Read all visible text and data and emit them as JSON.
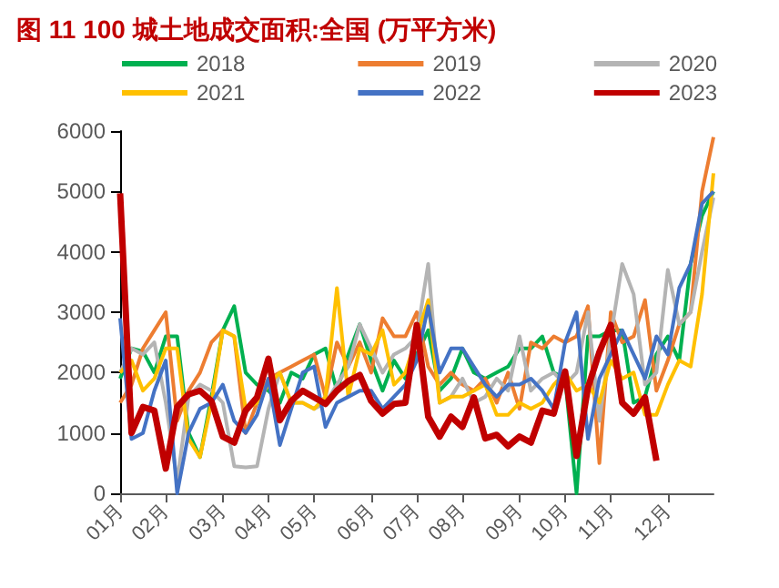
{
  "chart_data": {
    "type": "line",
    "title": "图 11 100 城土地成交面积:全国 (万平方米)",
    "categories": [
      "01月",
      null,
      null,
      null,
      "02月",
      null,
      null,
      null,
      null,
      "03月",
      null,
      null,
      null,
      "04月",
      null,
      null,
      null,
      "05月",
      null,
      null,
      null,
      null,
      "06月",
      null,
      null,
      null,
      "07月",
      null,
      null,
      null,
      "08月",
      null,
      null,
      null,
      null,
      "09月",
      null,
      null,
      null,
      "10月",
      null,
      null,
      null,
      "11月",
      null,
      null,
      null,
      null,
      "12月",
      null,
      null,
      null,
      null
    ],
    "ylim": [
      0,
      6000
    ],
    "yticks": [
      0,
      1000,
      2000,
      3000,
      4000,
      5000,
      6000
    ],
    "legend": "top",
    "grid": false,
    "marker": "none",
    "line_style": "solid",
    "series": [
      {
        "name": "2018",
        "color": "#00b050",
        "values": [
          1900,
          2400,
          2350,
          2000,
          2600,
          2600,
          1000,
          600,
          1600,
          2700,
          3100,
          2000,
          1800,
          1700,
          1500,
          2000,
          1900,
          2300,
          2400,
          1700,
          2300,
          2800,
          2200,
          1700,
          2200,
          1900,
          2300,
          2700,
          1700,
          1900,
          2400,
          2000,
          1900,
          2000,
          2100,
          2400,
          2400,
          2600,
          2000,
          1900,
          0,
          2600,
          2600,
          2700,
          2700,
          1500,
          1600,
          2300,
          2600,
          2200,
          3800,
          4600,
          5000
        ]
      },
      {
        "name": "2019",
        "color": "#ed7d31",
        "values": [
          1500,
          1800,
          2400,
          2700,
          3000,
          1200,
          1700,
          2000,
          2500,
          2700,
          2600,
          1000,
          1500,
          1900,
          2000,
          2100,
          2200,
          2300,
          1600,
          2500,
          2100,
          2500,
          2000,
          2900,
          2600,
          2600,
          3000,
          2100,
          1800,
          2000,
          1800,
          1700,
          1900,
          1500,
          2000,
          1400,
          2500,
          2400,
          2600,
          2500,
          2600,
          3100,
          500,
          3000,
          2500,
          2600,
          3200,
          1700,
          2200,
          2800,
          3000,
          5000,
          5900
        ]
      },
      {
        "name": "2020",
        "color": "#b4b4b4",
        "values": [
          2000,
          2400,
          2300,
          2500,
          1500,
          200,
          1600,
          1800,
          1700,
          1500,
          450,
          430,
          450,
          1400,
          2000,
          1500,
          1500,
          1400,
          1500,
          1800,
          2100,
          2800,
          2400,
          2000,
          2300,
          2400,
          2600,
          3800,
          1500,
          1600,
          1900,
          1500,
          1600,
          1900,
          1700,
          2600,
          1700,
          1900,
          2000,
          1800,
          2000,
          3000,
          1200,
          2600,
          3800,
          3300,
          1800,
          2000,
          3700,
          2800,
          3000,
          4000,
          4900
        ]
      },
      {
        "name": "2021",
        "color": "#ffc000",
        "values": [
          2000,
          2200,
          1700,
          1900,
          2400,
          2400,
          900,
          600,
          1500,
          2700,
          2600,
          1400,
          1500,
          1800,
          2000,
          1500,
          1500,
          1400,
          1600,
          3400,
          1600,
          2400,
          2300,
          2700,
          1800,
          2000,
          2600,
          3200,
          1500,
          1600,
          1600,
          1700,
          1800,
          1300,
          1300,
          1500,
          1400,
          1500,
          1800,
          2000,
          1700,
          1800,
          1500,
          2200,
          1900,
          2000,
          1300,
          1300,
          1800,
          2200,
          2100,
          3300,
          5300
        ]
      },
      {
        "name": "2022",
        "color": "#4472c4",
        "values": [
          2900,
          900,
          1000,
          1700,
          2200,
          0,
          1000,
          1400,
          1500,
          1800,
          1200,
          1000,
          1300,
          1900,
          800,
          1400,
          2000,
          2100,
          1100,
          1500,
          1600,
          1700,
          1700,
          1400,
          1600,
          1800,
          2200,
          3100,
          2000,
          2400,
          2400,
          2100,
          1800,
          1600,
          1800,
          1800,
          1900,
          1700,
          1400,
          2500,
          3000,
          900,
          1900,
          2300,
          2700,
          2300,
          1900,
          2600,
          2300,
          3400,
          3800,
          4800,
          5000
        ]
      },
      {
        "name": "2023",
        "color": "#c00000",
        "values": [
          4970,
          1000,
          1430,
          1370,
          410,
          1430,
          1640,
          1700,
          1530,
          940,
          840,
          1370,
          1590,
          2230,
          1210,
          1530,
          1700,
          1590,
          1480,
          1700,
          1860,
          1960,
          1530,
          1320,
          1480,
          1500,
          2790,
          1270,
          940,
          1270,
          1100,
          1590,
          910,
          970,
          780,
          940,
          840,
          1370,
          1320,
          2020,
          620,
          1750,
          2340,
          2790,
          1500,
          1320,
          1590,
          540,
          null,
          null,
          null,
          null,
          null
        ]
      }
    ]
  }
}
